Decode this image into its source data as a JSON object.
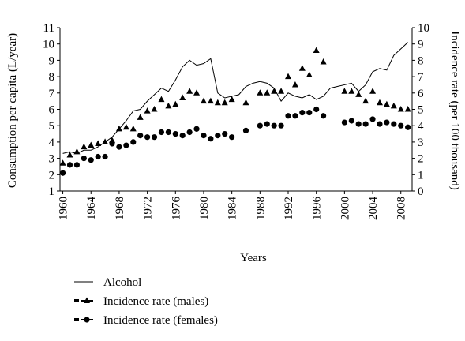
{
  "chart_data": {
    "type": "line",
    "xlabel": "Years",
    "ylabel": "Consumption per capita (L/year)",
    "y2label": "Incidence rate (per 100 thousand)",
    "x": [
      1960,
      1961,
      1962,
      1963,
      1964,
      1965,
      1966,
      1967,
      1968,
      1969,
      1970,
      1971,
      1972,
      1973,
      1974,
      1975,
      1976,
      1977,
      1978,
      1979,
      1980,
      1981,
      1982,
      1983,
      1984,
      1985,
      1986,
      1987,
      1988,
      1989,
      1990,
      1991,
      1992,
      1993,
      1994,
      1995,
      1996,
      1997,
      1998,
      1999,
      2000,
      2001,
      2002,
      2003,
      2004,
      2005,
      2006,
      2007,
      2008,
      2009
    ],
    "xlim": [
      1959.6,
      2009.6
    ],
    "xticks": [
      1960,
      1964,
      1968,
      1972,
      1976,
      1980,
      1984,
      1988,
      1992,
      1996,
      2000,
      2004,
      2008
    ],
    "ylim": [
      1,
      11
    ],
    "yticks": [
      1,
      2,
      3,
      4,
      5,
      6,
      7,
      8,
      9,
      10,
      11
    ],
    "y2lim": [
      0,
      10
    ],
    "y2ticks": [
      0,
      1,
      2,
      3,
      4,
      5,
      6,
      7,
      8,
      9,
      10
    ],
    "series": [
      {
        "name": "Alcohol",
        "color": "#000000",
        "marker": "none",
        "values": [
          3.3,
          3.4,
          3.3,
          3.5,
          3.5,
          3.7,
          4.0,
          4.3,
          4.8,
          5.3,
          5.9,
          6.0,
          6.5,
          6.9,
          7.3,
          7.1,
          7.8,
          8.6,
          9.0,
          8.7,
          8.8,
          9.1,
          7.0,
          6.7,
          6.8,
          6.9,
          7.4,
          7.6,
          7.7,
          7.6,
          7.3,
          6.5,
          7.0,
          6.8,
          6.7,
          6.9,
          6.6,
          6.8,
          7.3,
          7.4,
          7.5,
          7.6,
          7.1,
          7.5,
          8.3,
          8.5,
          8.4,
          9.3,
          9.7,
          10.1
        ]
      },
      {
        "name": "Incidence rate (males)",
        "color": "#000000",
        "marker": "triangle",
        "axis": "y2",
        "values": [
          1.7,
          2.2,
          2.4,
          2.7,
          2.8,
          2.9,
          3.0,
          3.1,
          3.8,
          3.9,
          3.8,
          4.5,
          4.9,
          5.0,
          5.6,
          5.2,
          5.3,
          5.7,
          6.1,
          6.0,
          5.5,
          5.5,
          5.4,
          5.4,
          5.6,
          null,
          5.4,
          null,
          6.0,
          6.0,
          6.1,
          6.1,
          7.0,
          6.5,
          7.5,
          7.1,
          8.6,
          7.9,
          null,
          null,
          6.1,
          6.1,
          5.9,
          5.5,
          6.1,
          5.4,
          5.3,
          5.2,
          5.0,
          5.0
        ]
      },
      {
        "name": "Incidence rate (females)",
        "color": "#000000",
        "marker": "circle",
        "axis": "y2",
        "values": [
          1.1,
          1.6,
          1.6,
          2.0,
          1.9,
          2.1,
          2.1,
          2.9,
          2.7,
          2.8,
          3.0,
          3.4,
          3.3,
          3.3,
          3.6,
          3.6,
          3.5,
          3.4,
          3.6,
          3.8,
          3.4,
          3.2,
          3.4,
          3.5,
          3.3,
          null,
          3.7,
          null,
          4.0,
          4.1,
          4.0,
          4.0,
          4.6,
          4.6,
          4.8,
          4.8,
          5.0,
          4.6,
          null,
          null,
          4.2,
          4.3,
          4.1,
          4.1,
          4.4,
          4.1,
          4.2,
          4.1,
          4.0,
          3.9
        ]
      }
    ]
  }
}
